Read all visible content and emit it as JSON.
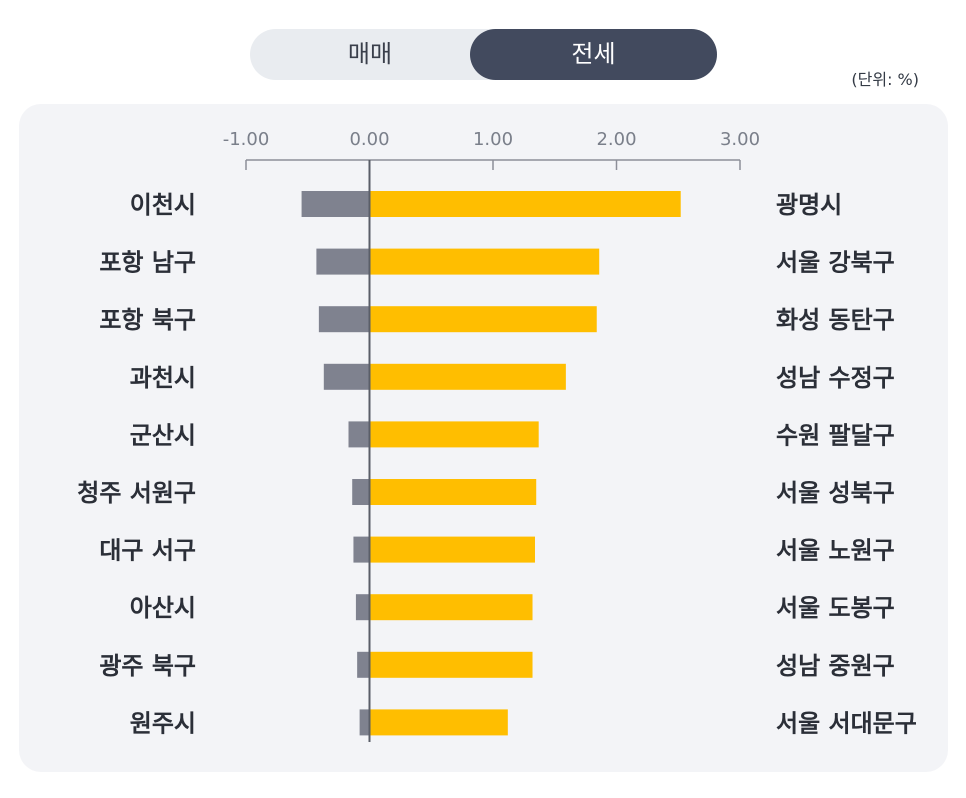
{
  "tabs": {
    "sale_label": "매매",
    "lease_label": "전세",
    "selected": "전세"
  },
  "unit_label": "(단위: %)",
  "colors": {
    "negative_bar": "#7f828f",
    "positive_bar": "#ffbe00",
    "axis": "#8c8f98",
    "toggle_active": "#424a5e",
    "toggle_bg": "#e9ecf0",
    "panel_bg": "#f3f4f7"
  },
  "chart_data": {
    "type": "bar",
    "orientation": "horizontal",
    "xlim": [
      -1.0,
      3.0
    ],
    "x_ticks": [
      "-1.00",
      "0.00",
      "1.00",
      "2.00",
      "3.00"
    ],
    "x_tick_values": [
      -1,
      0,
      1,
      2,
      3
    ],
    "axis_position": "top",
    "grid": false,
    "legend": "none",
    "series": [
      {
        "side": "negative",
        "categories": [
          "이천시",
          "포항 남구",
          "포항 북구",
          "과천시",
          "군산시",
          "청주 서원구",
          "대구 서구",
          "아산시",
          "광주 북구",
          "원주시"
        ],
        "values": [
          -0.55,
          -0.43,
          -0.41,
          -0.37,
          -0.17,
          -0.14,
          -0.13,
          -0.11,
          -0.1,
          -0.08
        ]
      },
      {
        "side": "positive",
        "categories": [
          "광명시",
          "서울 강북구",
          "화성 동탄구",
          "성남 수정구",
          "수원 팔달구",
          "서울 성북구",
          "서울 노원구",
          "서울 도봉구",
          "성남 중원구",
          "서울 서대문구"
        ],
        "values": [
          2.52,
          1.86,
          1.84,
          1.59,
          1.37,
          1.35,
          1.34,
          1.32,
          1.32,
          1.12
        ]
      }
    ]
  }
}
